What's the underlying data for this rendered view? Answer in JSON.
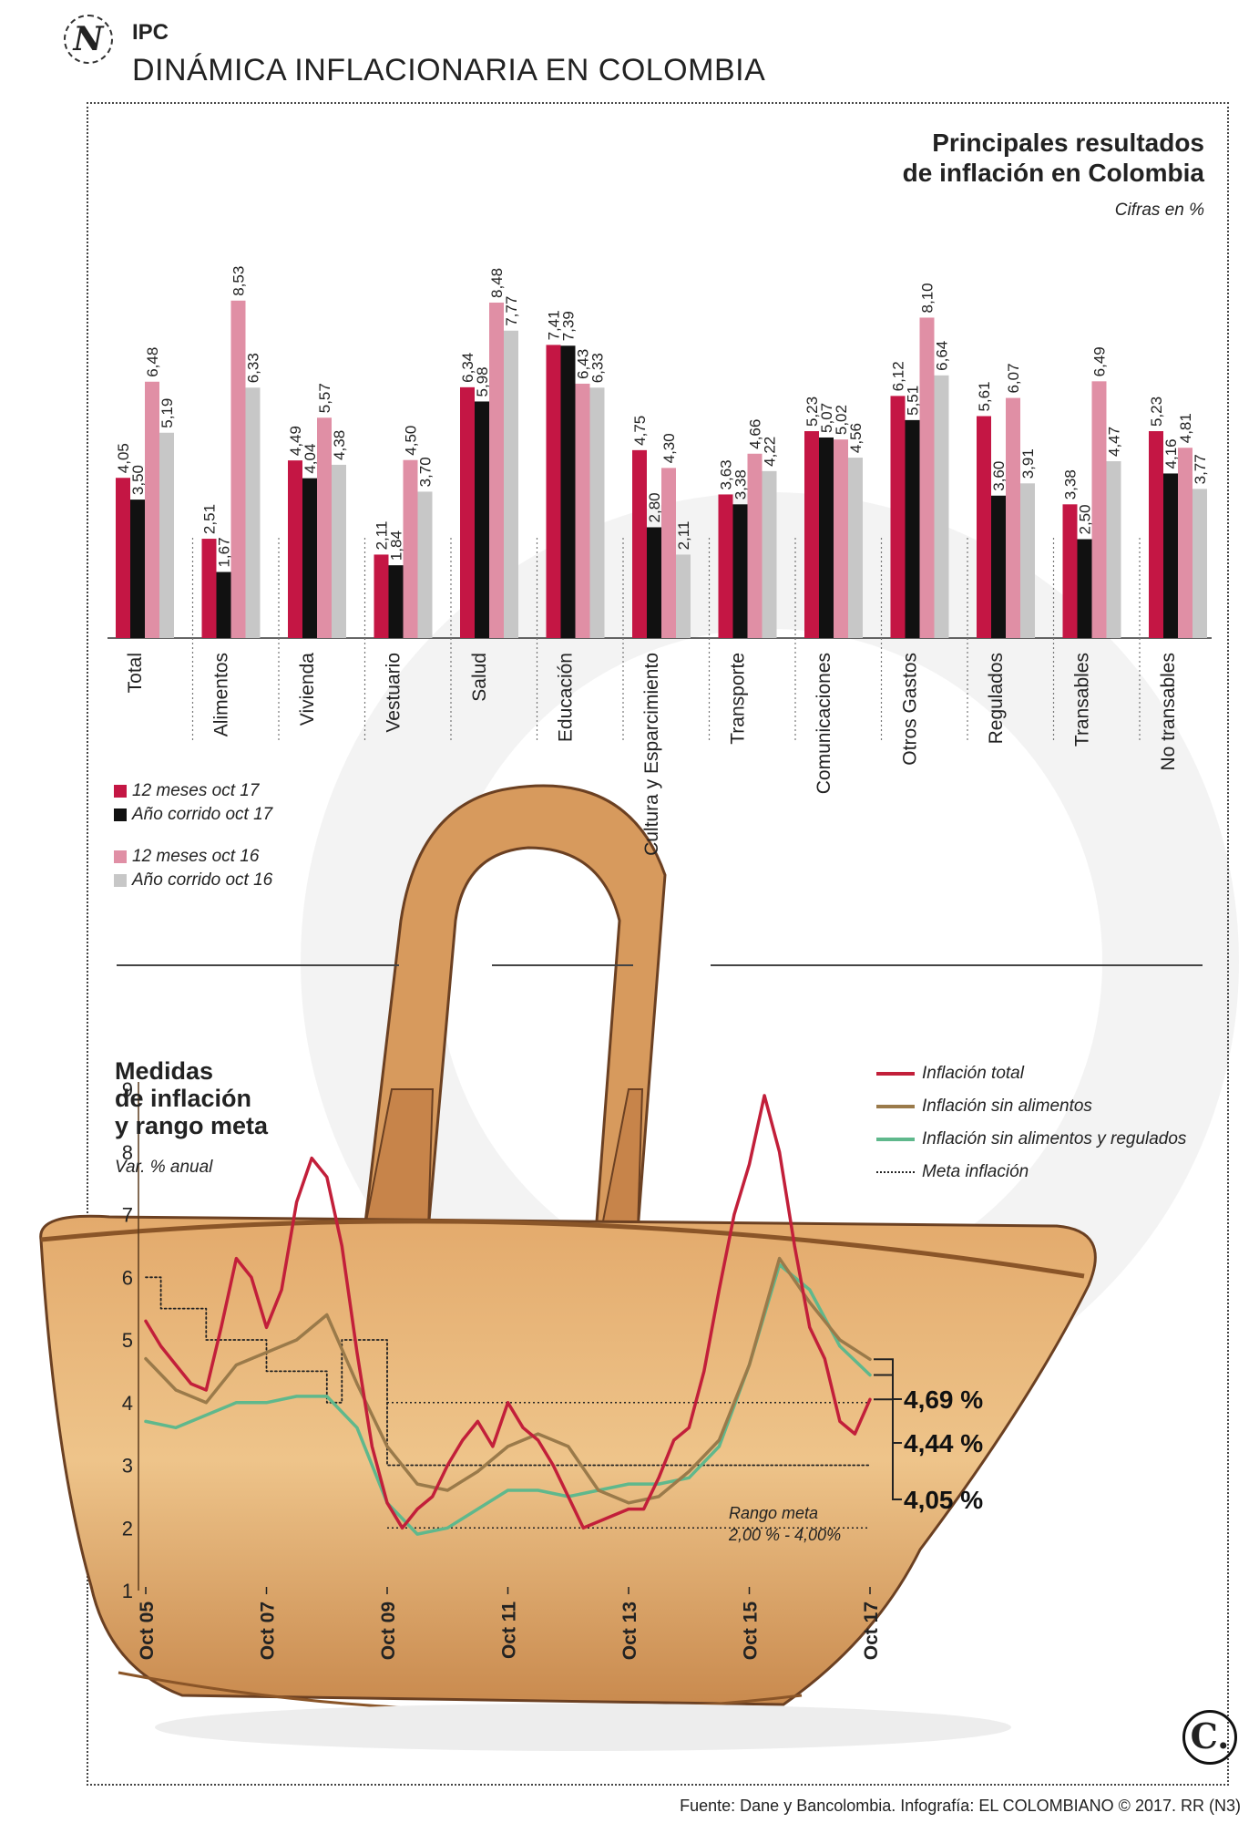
{
  "header": {
    "section": "IPC",
    "title": "DINÁMICA INFLACIONARIA EN COLOMBIA",
    "logo_letter": "N"
  },
  "bar_chart_text": {
    "title_line1": "Principales resultados",
    "title_line2": "de inflación en Colombia",
    "subtitle": "Cifras en %"
  },
  "line_chart_text": {
    "title_line1": "Medidas",
    "title_line2": "de inflación",
    "title_line3": "y rango meta",
    "subtitle": "Var. % anual"
  },
  "footer": {
    "source": "Fuente: Dane y Bancolombia. Infografía: EL COLOMBIANO © 2017. RR (N3)",
    "logo_letter": "C."
  },
  "colors": {
    "red": "#c41644",
    "black": "#111111",
    "pink": "#e08fa5",
    "gray": "#c7c7c7",
    "line_total": "#c21f3a",
    "line_sin_alimentos": "#9a7a4a",
    "line_sin_alim_reg": "#5fb88c"
  },
  "chart_data": [
    {
      "type": "bar",
      "title": "Principales resultados de inflación en Colombia",
      "subtitle": "Cifras en %",
      "categories": [
        "Total",
        "Alimentos",
        "Vivienda",
        "Vestuario",
        "Salud",
        "Educación",
        "Cultura y Esparcimiento",
        "Transporte",
        "Comunicaciones",
        "Otros Gastos",
        "Regulados",
        "Transables",
        "No transables"
      ],
      "series": [
        {
          "name": "12 meses oct 17",
          "color": "#c41644",
          "values": [
            4.05,
            2.51,
            4.49,
            2.11,
            6.34,
            7.41,
            4.75,
            3.63,
            5.23,
            6.12,
            5.61,
            3.38,
            5.23
          ]
        },
        {
          "name": "Año corrido oct 17",
          "color": "#111111",
          "values": [
            3.5,
            1.67,
            4.04,
            1.84,
            5.98,
            7.39,
            2.8,
            3.38,
            5.07,
            5.51,
            3.6,
            2.5,
            4.16
          ]
        },
        {
          "name": "12 meses oct 16",
          "color": "#e08fa5",
          "values": [
            6.48,
            8.53,
            5.57,
            4.5,
            8.48,
            6.43,
            4.3,
            4.66,
            5.02,
            8.1,
            6.07,
            6.49,
            4.81
          ]
        },
        {
          "name": "Año corrido oct 16",
          "color": "#c7c7c7",
          "values": [
            5.19,
            6.33,
            4.38,
            3.7,
            7.77,
            6.33,
            2.11,
            4.22,
            4.56,
            6.64,
            3.91,
            4.47,
            3.77
          ]
        }
      ],
      "value_labels": [
        [
          "4,05",
          "3,50",
          "6,48",
          "5,19"
        ],
        [
          "2,51",
          "1,67",
          "8,53",
          "6,33"
        ],
        [
          "4,49",
          "4,04",
          "5,57",
          "4,38"
        ],
        [
          "2,11",
          "1,84",
          "4,50",
          "3,70"
        ],
        [
          "6,34",
          "5,98",
          "8,48",
          "7,77"
        ],
        [
          "7,41",
          "7,39",
          "6,43",
          "6,33"
        ],
        [
          "4,75",
          "2,80",
          "4,30",
          "2,11"
        ],
        [
          "3,63",
          "3,38",
          "4,66",
          "4,22"
        ],
        [
          "5,23",
          "5,07",
          "5,02",
          "4,56"
        ],
        [
          "6,12",
          "5,51",
          "8,10",
          "6,64"
        ],
        [
          "5,61",
          "3,60",
          "6,07",
          "3,91"
        ],
        [
          "3,38",
          "2,50",
          "6,49",
          "4,47"
        ],
        [
          "5,23",
          "4,16",
          "4,81",
          "3,77"
        ]
      ],
      "legend_placement": "bottom-left"
    },
    {
      "type": "line",
      "title": "Medidas de inflación y rango meta",
      "subtitle": "Var. % anual",
      "x_ticks": [
        "Oct 05",
        "Oct 07",
        "Oct 09",
        "Oct 11",
        "Oct 13",
        "Oct 15",
        "Oct 17"
      ],
      "x_range": [
        2005.75,
        2017.75
      ],
      "y_ticks": [
        "9",
        "8",
        "7",
        "6",
        "5",
        "4",
        "3",
        "2",
        "1"
      ],
      "ylim": [
        1,
        9
      ],
      "series": [
        {
          "name": "Inflación total",
          "color": "#c21f3a",
          "x": [
            2005.75,
            2006.0,
            2006.25,
            2006.5,
            2006.75,
            2007.0,
            2007.25,
            2007.5,
            2007.75,
            2008.0,
            2008.25,
            2008.5,
            2008.75,
            2009.0,
            2009.25,
            2009.5,
            2009.75,
            2010.0,
            2010.25,
            2010.5,
            2010.75,
            2011.0,
            2011.25,
            2011.5,
            2011.75,
            2012.0,
            2012.25,
            2012.5,
            2012.75,
            2013.0,
            2013.25,
            2013.5,
            2013.75,
            2014.0,
            2014.25,
            2014.5,
            2014.75,
            2015.0,
            2015.25,
            2015.5,
            2015.75,
            2016.0,
            2016.25,
            2016.5,
            2016.75,
            2017.0,
            2017.25,
            2017.5,
            2017.75
          ],
          "values": [
            5.3,
            4.9,
            4.6,
            4.3,
            4.2,
            5.2,
            6.3,
            6.0,
            5.2,
            5.8,
            7.2,
            7.9,
            7.6,
            6.5,
            4.8,
            3.3,
            2.4,
            2.0,
            2.3,
            2.5,
            3.0,
            3.4,
            3.7,
            3.3,
            4.0,
            3.6,
            3.4,
            3.0,
            2.5,
            2.0,
            2.1,
            2.2,
            2.3,
            2.3,
            2.8,
            3.4,
            3.6,
            4.5,
            5.8,
            7.0,
            7.8,
            8.9,
            8.0,
            6.5,
            5.2,
            4.7,
            3.7,
            3.5,
            4.05
          ]
        },
        {
          "name": "Inflación sin alimentos",
          "color": "#9a7a4a",
          "x": [
            2005.75,
            2006.25,
            2006.75,
            2007.25,
            2007.75,
            2008.25,
            2008.75,
            2009.25,
            2009.75,
            2010.25,
            2010.75,
            2011.25,
            2011.75,
            2012.25,
            2012.75,
            2013.25,
            2013.75,
            2014.25,
            2014.75,
            2015.25,
            2015.75,
            2016.25,
            2016.75,
            2017.25,
            2017.75
          ],
          "values": [
            4.7,
            4.2,
            4.0,
            4.6,
            4.8,
            5.0,
            5.4,
            4.3,
            3.3,
            2.7,
            2.6,
            2.9,
            3.3,
            3.5,
            3.3,
            2.6,
            2.4,
            2.5,
            2.9,
            3.4,
            4.6,
            6.3,
            5.6,
            5.0,
            4.69
          ]
        },
        {
          "name": "Inflación sin alimentos y regulados",
          "color": "#5fb88c",
          "x": [
            2005.75,
            2006.25,
            2006.75,
            2007.25,
            2007.75,
            2008.25,
            2008.75,
            2009.25,
            2009.75,
            2010.25,
            2010.75,
            2011.25,
            2011.75,
            2012.25,
            2012.75,
            2013.25,
            2013.75,
            2014.25,
            2014.75,
            2015.25,
            2015.75,
            2016.25,
            2016.75,
            2017.25,
            2017.75
          ],
          "values": [
            3.7,
            3.6,
            3.8,
            4.0,
            4.0,
            4.1,
            4.1,
            3.6,
            2.4,
            1.9,
            2.0,
            2.3,
            2.6,
            2.6,
            2.5,
            2.6,
            2.7,
            2.7,
            2.8,
            3.3,
            4.6,
            6.2,
            5.8,
            4.9,
            4.44
          ]
        },
        {
          "name": "Meta inflación",
          "color": "#222222",
          "style": "dotted",
          "x": [
            2005.75,
            2006.0,
            2006.0,
            2006.75,
            2006.75,
            2007.75,
            2007.75,
            2008.75,
            2008.75,
            2009.0,
            2009.0,
            2009.75,
            2009.75,
            2017.75
          ],
          "values": [
            6.0,
            6.0,
            5.5,
            5.5,
            5.0,
            5.0,
            4.5,
            4.5,
            4.0,
            4.0,
            5.0,
            5.0,
            3.0,
            3.0
          ]
        }
      ],
      "range_band": {
        "label_line1": "Rango meta",
        "label_line2": "2,00 % - 4,00%",
        "low": 2.0,
        "high": 4.0,
        "from": 2009.75,
        "to": 2017.75
      },
      "end_labels": [
        "4,69 %",
        "4,44 %",
        "4,05 %"
      ],
      "legend_placement": "top-right"
    }
  ]
}
